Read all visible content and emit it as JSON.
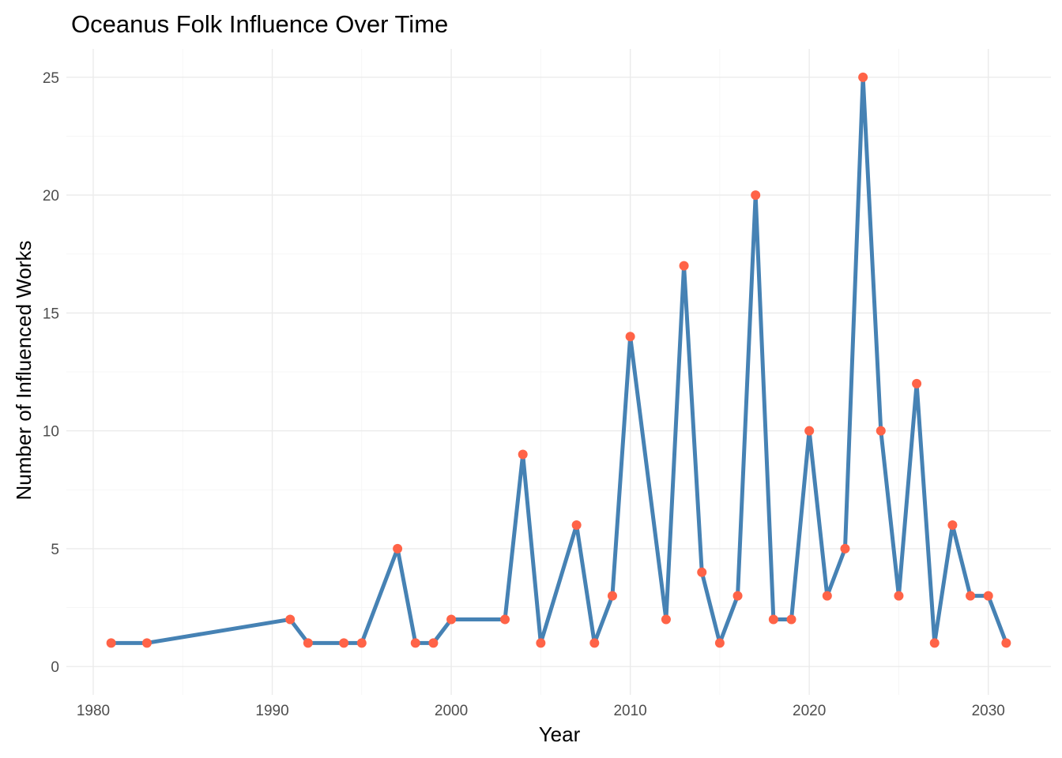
{
  "chart_data": {
    "type": "line",
    "title": "Oceanus Folk Influence Over Time",
    "xlabel": "Year",
    "ylabel": "Number of Influenced Works",
    "xlim": [
      1978.5,
      2033.5
    ],
    "ylim": [
      -1.2,
      26.2
    ],
    "x_ticks": [
      1980,
      1990,
      2000,
      2010,
      2020,
      2030
    ],
    "y_ticks": [
      0,
      5,
      10,
      15,
      20,
      25
    ],
    "grid": true,
    "line_color": "#4682B4",
    "point_color": "#FF6347",
    "series": [
      {
        "x": [
          1981,
          1983,
          1991,
          1992,
          1994,
          1995,
          1997,
          1998,
          1999,
          2000,
          2003,
          2004,
          2005,
          2007,
          2008,
          2009,
          2010,
          2012,
          2013,
          2014,
          2015,
          2016,
          2017,
          2018,
          2019,
          2020,
          2021,
          2022,
          2023,
          2024,
          2025,
          2026,
          2027,
          2028,
          2029,
          2030,
          2031
        ],
        "values": [
          1,
          1,
          2,
          1,
          1,
          1,
          5,
          1,
          1,
          2,
          2,
          9,
          1,
          6,
          1,
          3,
          14,
          2,
          17,
          4,
          1,
          3,
          20,
          2,
          2,
          10,
          3,
          5,
          25,
          10,
          3,
          12,
          1,
          6,
          3,
          3,
          1
        ]
      }
    ]
  }
}
